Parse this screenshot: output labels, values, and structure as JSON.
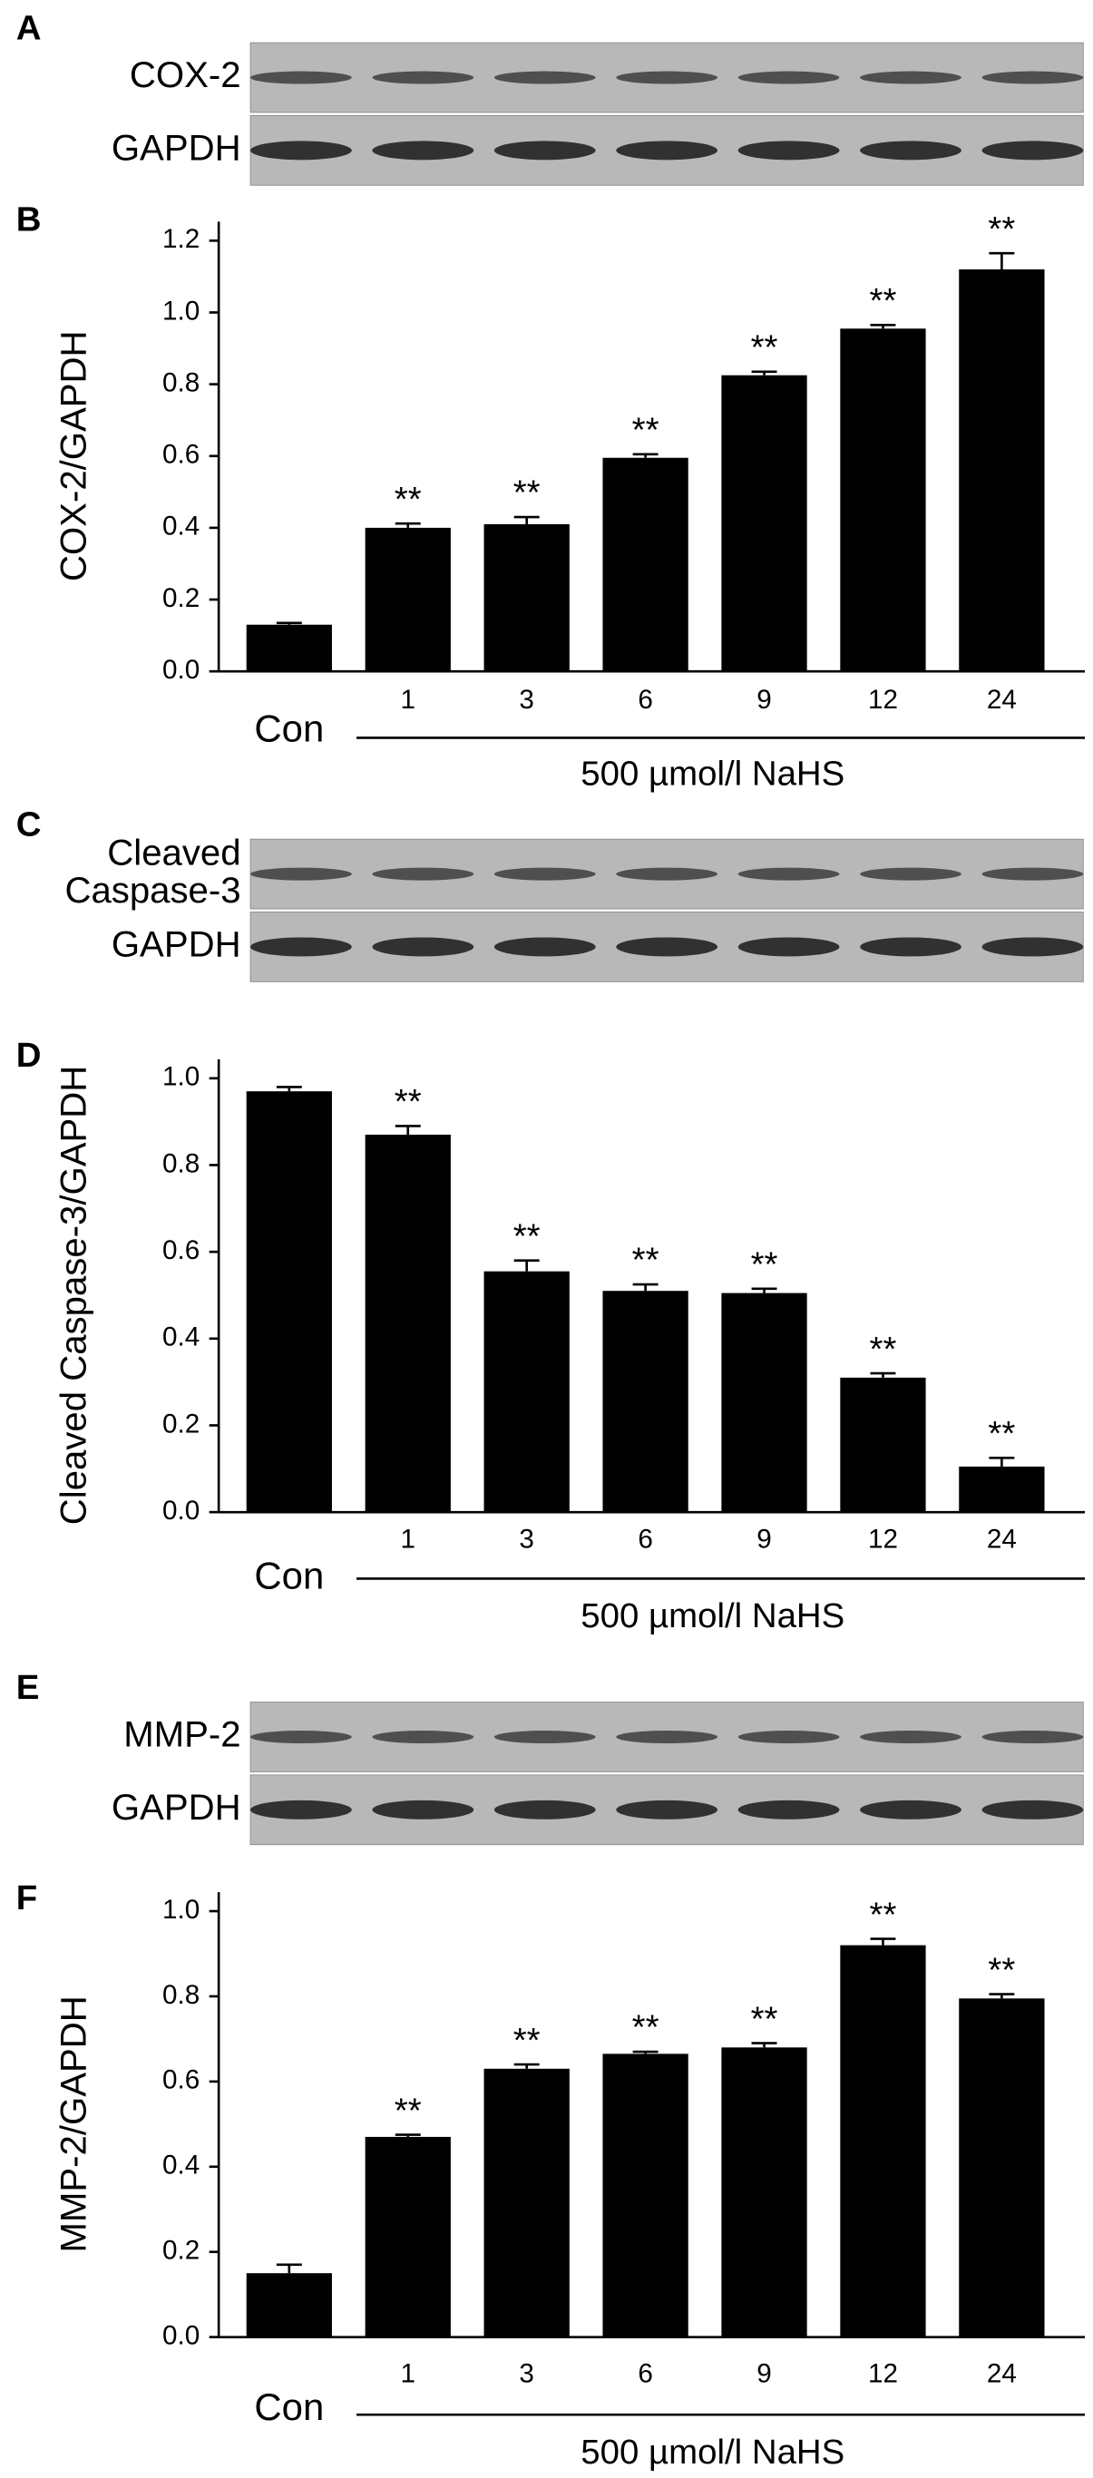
{
  "blots": [
    {
      "panel": "A",
      "rows": [
        [
          "COX-2"
        ],
        [
          "GAPDH"
        ]
      ]
    },
    {
      "panel": "C",
      "rows": [
        [
          "Cleaved",
          "Caspase-3"
        ],
        [
          "GAPDH"
        ]
      ]
    },
    {
      "panel": "E",
      "rows": [
        [
          "MMP-2"
        ],
        [
          "GAPDH"
        ]
      ]
    }
  ],
  "chart_data": [
    {
      "type": "bar",
      "panel": "B",
      "ylabel": "COX-2/GAPDH",
      "xlabel": "500 µmol/l NaHS",
      "categories": [
        "Con",
        "1",
        "3",
        "6",
        "9",
        "12",
        "24"
      ],
      "values": [
        0.13,
        0.4,
        0.41,
        0.595,
        0.825,
        0.955,
        1.12
      ],
      "errors": [
        0.005,
        0.012,
        0.02,
        0.01,
        0.01,
        0.01,
        0.045
      ],
      "annotations": [
        null,
        "**",
        "**",
        "**",
        "**",
        "**",
        "**"
      ],
      "color": "#000000",
      "ylim": [
        0,
        1.2
      ],
      "yticks": [
        {
          "value": 0,
          "label": "0.0"
        },
        0.2,
        0.4,
        0.6,
        0.8,
        {
          "value": 1,
          "label": "1.0"
        },
        1.2
      ]
    },
    {
      "type": "bar",
      "panel": "D",
      "ylabel": "Cleaved Caspase-3/GAPDH",
      "xlabel": "500 µmol/l NaHS",
      "categories": [
        "Con",
        "1",
        "3",
        "6",
        "9",
        "12",
        "24"
      ],
      "values": [
        0.97,
        0.87,
        0.555,
        0.51,
        0.505,
        0.31,
        0.105
      ],
      "errors": [
        0.01,
        0.02,
        0.025,
        0.015,
        0.01,
        0.01,
        0.02
      ],
      "annotations": [
        null,
        "**",
        "**",
        "**",
        "**",
        "**",
        "**"
      ],
      "color": "#000000",
      "ylim": [
        0,
        1
      ],
      "yticks": [
        {
          "value": 0,
          "label": "0.0"
        },
        0.2,
        0.4,
        0.6,
        0.8,
        {
          "value": 1,
          "label": "1.0"
        }
      ]
    },
    {
      "type": "bar",
      "panel": "F",
      "ylabel": "MMP-2/GAPDH",
      "xlabel": "500 µmol/l NaHS",
      "categories": [
        "Con",
        "1",
        "3",
        "6",
        "9",
        "12",
        "24"
      ],
      "values": [
        0.15,
        0.47,
        0.63,
        0.665,
        0.68,
        0.92,
        0.795
      ],
      "errors": [
        0.02,
        0.005,
        0.01,
        0.005,
        0.01,
        0.015,
        0.01
      ],
      "annotations": [
        null,
        "**",
        "**",
        "**",
        "**",
        "**",
        "**"
      ],
      "color": "#000000",
      "ylim": [
        0,
        1
      ],
      "yticks": [
        {
          "value": 0,
          "label": "0.0"
        },
        0.2,
        0.4,
        0.6,
        0.8,
        {
          "value": 1,
          "label": "1.0"
        }
      ]
    }
  ]
}
